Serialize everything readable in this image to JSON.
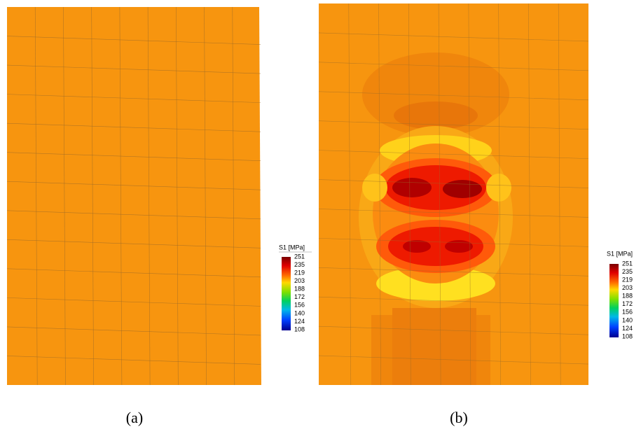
{
  "panels": [
    {
      "caption": "(a)",
      "legend_title": "S1 [MPa]",
      "legend_labels": [
        251,
        235,
        219,
        203,
        188,
        172,
        156,
        140,
        124,
        108
      ]
    },
    {
      "caption": "(b)",
      "legend_title": "S1 [MPa]",
      "legend_labels": [
        251,
        235,
        219,
        203,
        188,
        172,
        156,
        140,
        124,
        108
      ]
    }
  ]
}
